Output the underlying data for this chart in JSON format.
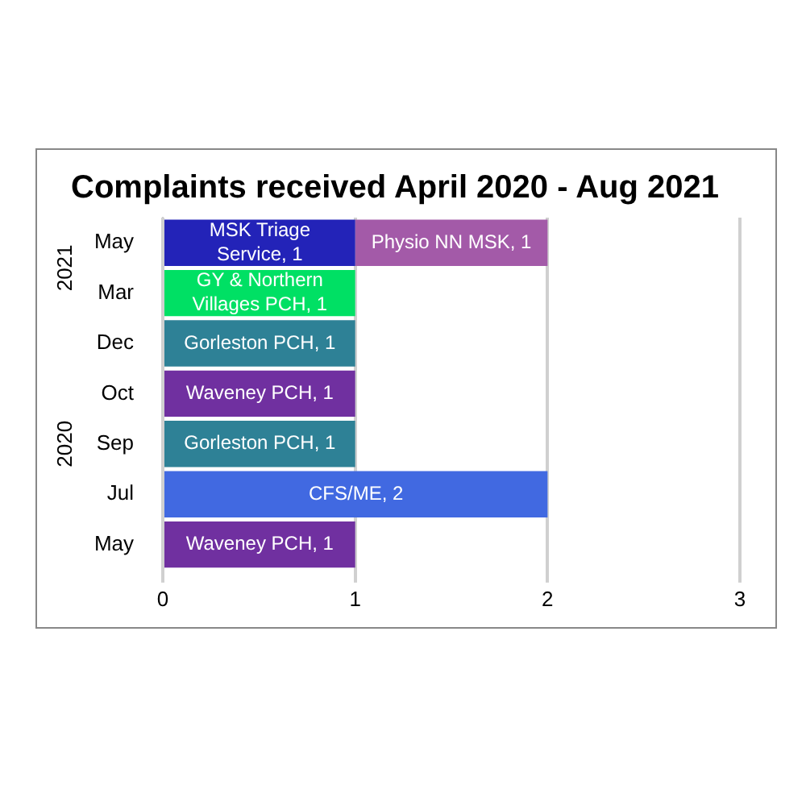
{
  "chart_data": {
    "type": "bar",
    "title": "Complaints received April 2020 - Aug 2021",
    "orientation": "horizontal",
    "stacked": true,
    "categories": [
      "May",
      "Mar",
      "Dec",
      "Oct",
      "Sep",
      "Jul",
      "May"
    ],
    "series": [
      {
        "colors": [
          "#2323b8",
          "#00e064",
          "#2e8196",
          "#7030a0",
          "#2e8196",
          "#4169e1",
          "#7030a0"
        ],
        "values": [
          1,
          1,
          1,
          1,
          1,
          2,
          1
        ],
        "value_labels": [
          "MSK Triage Service, 1",
          "GY & Northern Villages PCH, 1",
          "Gorleston PCH, 1",
          "Waveney PCH, 1",
          "Gorleston PCH, 1",
          "CFS/ME, 2",
          "Waveney PCH, 1"
        ]
      },
      {
        "color": "#a35aa8",
        "values": [
          1,
          null,
          null,
          null,
          null,
          null,
          null
        ],
        "value_labels": [
          "Physio NN MSK, 1",
          null,
          null,
          null,
          null,
          null,
          null
        ]
      }
    ],
    "xlim": [
      0,
      3
    ],
    "xticks": [
      0,
      1,
      2,
      3
    ],
    "grid": "x",
    "legend": false,
    "annotations": [
      "2021",
      "2020"
    ]
  }
}
